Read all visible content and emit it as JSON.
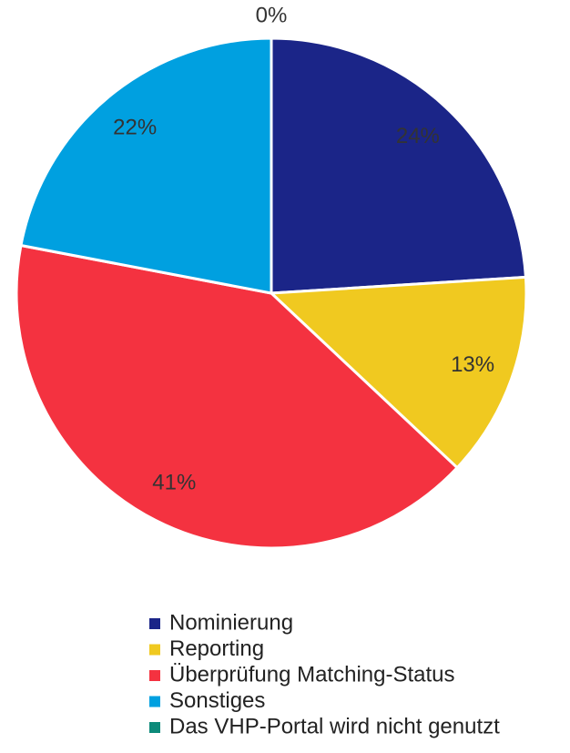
{
  "chart_data": {
    "type": "pie",
    "categories": [
      "Nominierung",
      "Reporting",
      "Überprüfung Matching-Status",
      "Sonstiges",
      "Das VHP-Portal wird nicht genutzt"
    ],
    "values": [
      24,
      13,
      41,
      22,
      0
    ],
    "value_labels": [
      "24%",
      "13%",
      "41%",
      "22%",
      "0%"
    ],
    "colors": [
      "#1b2588",
      "#f0c920",
      "#f43240",
      "#00a0e0",
      "#0d8a7a"
    ],
    "legend": "bottom"
  }
}
